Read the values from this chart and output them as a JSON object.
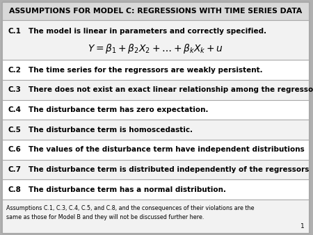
{
  "title": "ASSUMPTIONS FOR MODEL C: REGRESSIONS WITH TIME SERIES DATA",
  "title_bg": "#d9d9d9",
  "rows": [
    {
      "label": "C.1",
      "text": "The model is linear in parameters and correctly specified.",
      "has_formula": true,
      "formula": "$Y = \\beta_1 + \\beta_2 X_2 + \\ldots + \\beta_k X_k + u$",
      "bg": "#f2f2f2"
    },
    {
      "label": "C.2",
      "text": "The time series for the regressors are weakly persistent.",
      "has_formula": false,
      "bg": "#ffffff"
    },
    {
      "label": "C.3",
      "text": "There does not exist an exact linear relationship among the regressors.",
      "has_formula": false,
      "bg": "#f2f2f2"
    },
    {
      "label": "C.4",
      "text": "The disturbance term has zero expectation.",
      "has_formula": false,
      "bg": "#ffffff"
    },
    {
      "label": "C.5",
      "text": "The disturbance term is homoscedastic.",
      "has_formula": false,
      "bg": "#f2f2f2"
    },
    {
      "label": "C.6",
      "text": "The values of the disturbance term have independent distributions",
      "has_formula": false,
      "bg": "#ffffff"
    },
    {
      "label": "C.7",
      "text": "The disturbance term is distributed independently of the regressors",
      "has_formula": false,
      "bg": "#f2f2f2"
    },
    {
      "label": "C.8",
      "text": "The disturbance term has a normal distribution.",
      "has_formula": false,
      "bg": "#ffffff"
    }
  ],
  "footer_text": "Assumptions C.1, C.3, C.4, C.5, and C.8, and the consequences of their violations are the\nsame as those for Model B and they will not be discussed further here.",
  "footer_bg": "#f2f2f2",
  "border_color": "#aaaaaa",
  "outer_border_color": "#888888",
  "text_color": "#000000",
  "page_number": "1",
  "slide_bg": "#ffffff",
  "outer_bg": "#b0b0b0"
}
